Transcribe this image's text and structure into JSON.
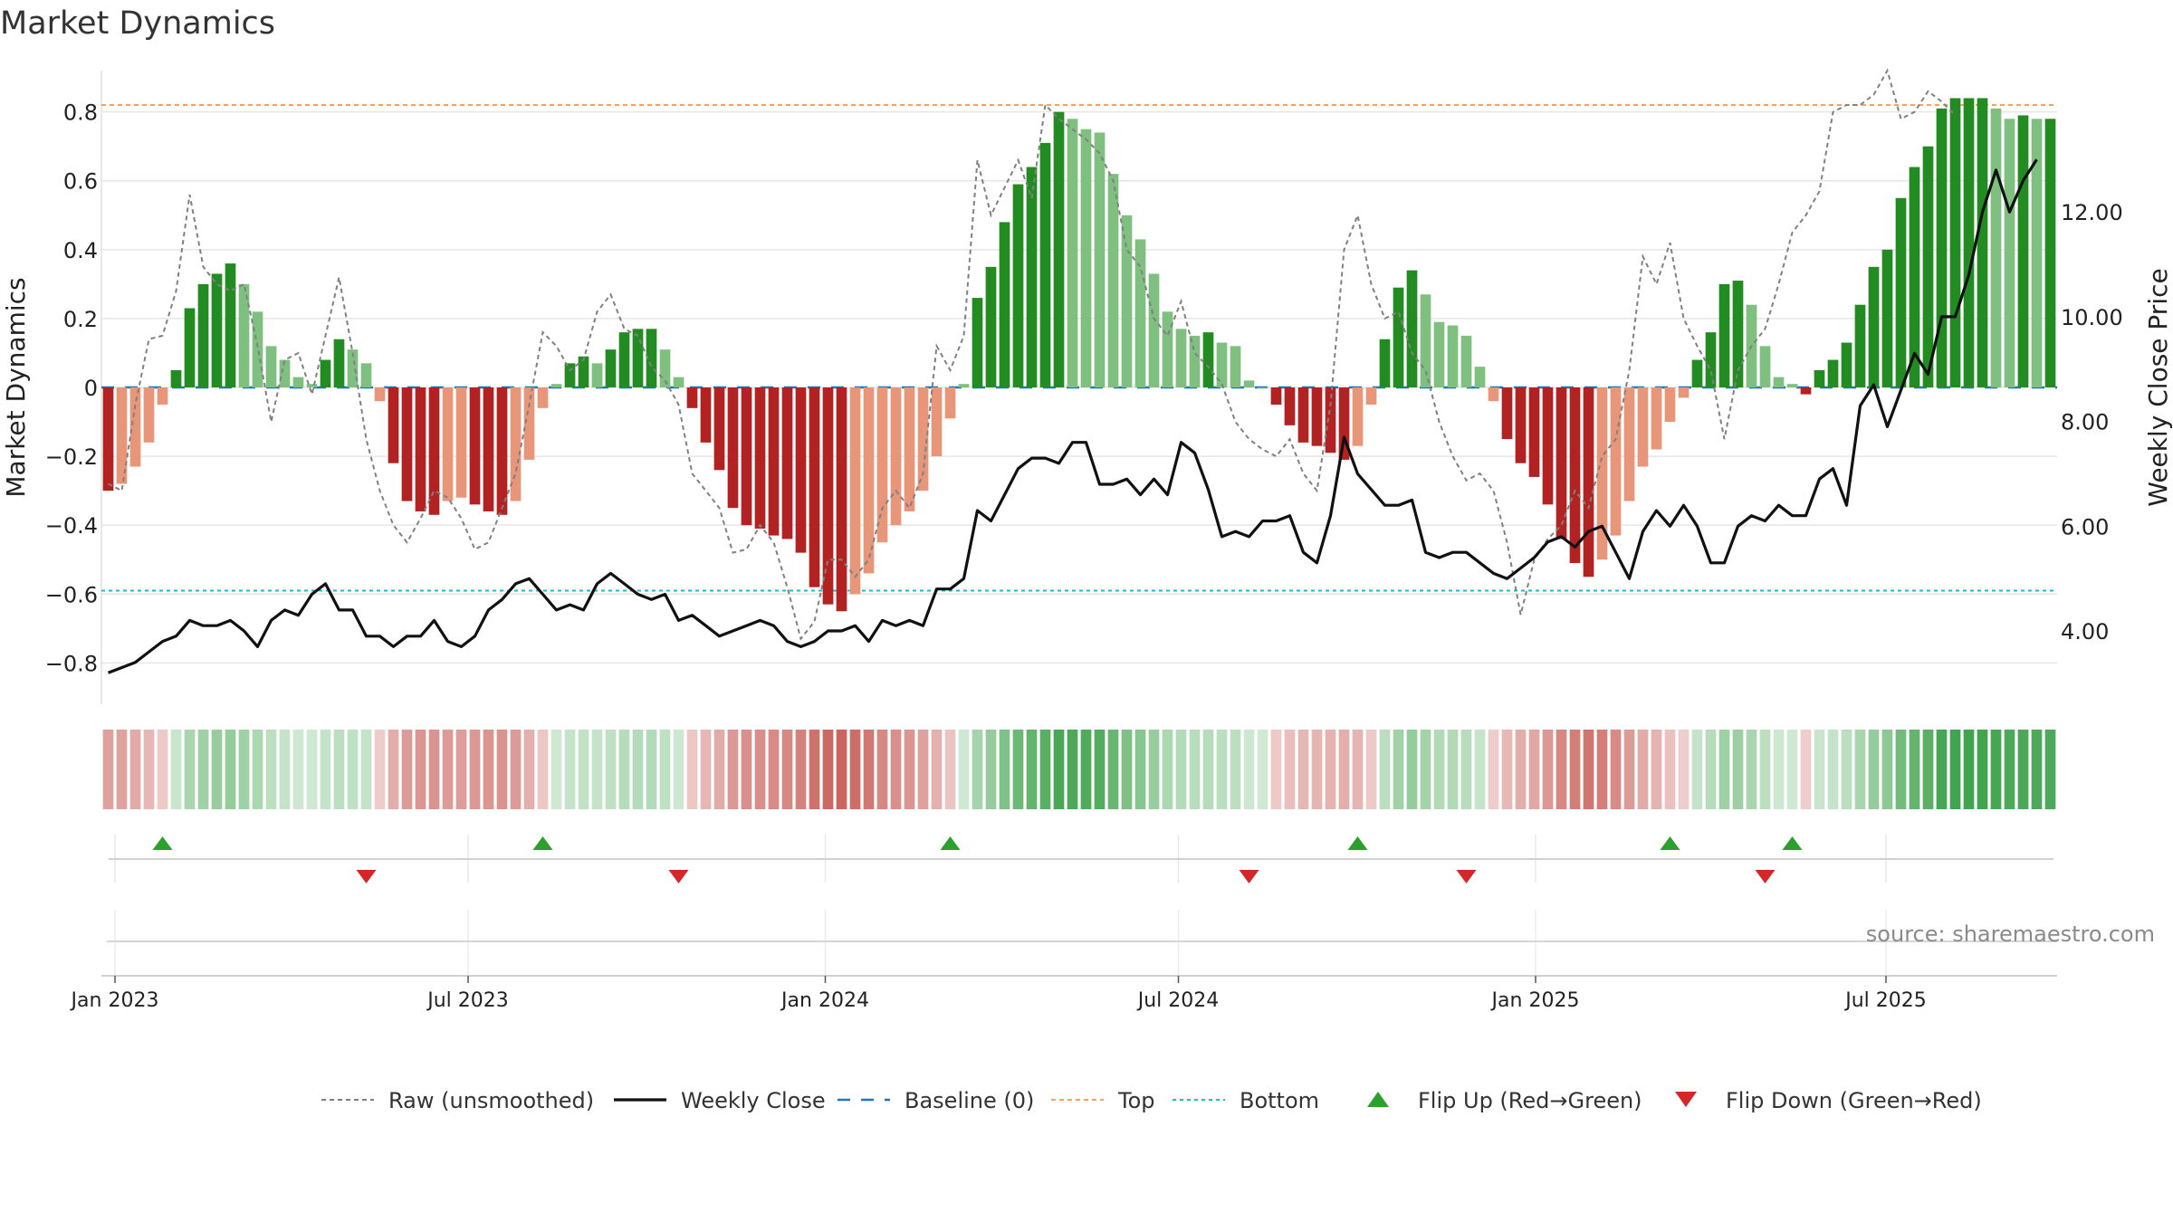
{
  "chart_data": {
    "type": "bar",
    "title": "Market Dynamics",
    "ylabel_left": "Market Dynamics",
    "ylabel_right": "Weekly Close Price",
    "source": "source: sharemaestro.com",
    "ylim_left": [
      -0.92,
      0.92
    ],
    "ylim_right": [
      2.6,
      14.7
    ],
    "left_ticks": [
      0.8,
      0.6,
      0.4,
      0.2,
      0,
      -0.2,
      -0.4,
      -0.6,
      -0.8
    ],
    "left_tick_labels": [
      "0.8",
      "0.6",
      "0.4",
      "0.2",
      "0",
      "−0.2",
      "−0.4",
      "−0.6",
      "−0.8"
    ],
    "right_ticks": [
      12,
      10,
      8,
      6,
      4
    ],
    "right_tick_labels": [
      "12.00",
      "10.00",
      "8.00",
      "6.00",
      "4.00"
    ],
    "x_week_start": -1,
    "x_ticks": [
      {
        "label": "Jan 2023",
        "week": 0
      },
      {
        "label": "Jul 2023",
        "week": 26
      },
      {
        "label": "Jan 2024",
        "week": 52.3
      },
      {
        "label": "Jul 2024",
        "week": 78.3
      },
      {
        "label": "Jan 2025",
        "week": 104.6
      },
      {
        "label": "Jul 2025",
        "week": 130.4
      }
    ],
    "top_level": 0.82,
    "bottom_level": -0.59,
    "baseline": 0,
    "smoothed": [
      -0.3,
      -0.28,
      -0.23,
      -0.16,
      -0.05,
      0.05,
      0.23,
      0.3,
      0.33,
      0.36,
      0.3,
      0.22,
      0.12,
      0.08,
      0.03,
      0.01,
      0.08,
      0.14,
      0.11,
      0.07,
      -0.04,
      -0.22,
      -0.33,
      -0.36,
      -0.37,
      -0.33,
      -0.32,
      -0.34,
      -0.36,
      -0.37,
      -0.33,
      -0.21,
      -0.06,
      0.01,
      0.07,
      0.09,
      0.07,
      0.11,
      0.16,
      0.17,
      0.17,
      0.11,
      0.03,
      -0.06,
      -0.16,
      -0.24,
      -0.35,
      -0.4,
      -0.41,
      -0.43,
      -0.44,
      -0.48,
      -0.58,
      -0.63,
      -0.65,
      -0.6,
      -0.54,
      -0.45,
      -0.4,
      -0.36,
      -0.3,
      -0.2,
      -0.09,
      0.01,
      0.26,
      0.35,
      0.48,
      0.59,
      0.64,
      0.71,
      0.8,
      0.78,
      0.75,
      0.74,
      0.62,
      0.5,
      0.43,
      0.33,
      0.22,
      0.17,
      0.15,
      0.16,
      0.13,
      0.12,
      0.02,
      0,
      -0.05,
      -0.11,
      -0.16,
      -0.17,
      -0.19,
      -0.21,
      -0.17,
      -0.05,
      0.14,
      0.29,
      0.34,
      0.27,
      0.19,
      0.18,
      0.15,
      0.06,
      -0.04,
      -0.15,
      -0.22,
      -0.26,
      -0.34,
      -0.44,
      -0.51,
      -0.55,
      -0.5,
      -0.43,
      -0.33,
      -0.23,
      -0.18,
      -0.1,
      -0.03,
      0.08,
      0.16,
      0.3,
      0.31,
      0.24,
      0.12,
      0.03,
      0.01,
      -0.02,
      0.05,
      0.08,
      0.13,
      0.24,
      0.35,
      0.4,
      0.55,
      0.64,
      0.7,
      0.81,
      0.84,
      0.84,
      0.84,
      0.81,
      0.78,
      0.79,
      0.78,
      0.78
    ],
    "raw": [
      -0.28,
      -0.3,
      -0.05,
      0.14,
      0.15,
      0.28,
      0.56,
      0.35,
      0.3,
      0.28,
      0.3,
      0.12,
      -0.1,
      0.08,
      0.1,
      -0.02,
      0.15,
      0.32,
      0.1,
      -0.15,
      -0.3,
      -0.4,
      -0.45,
      -0.38,
      -0.3,
      -0.32,
      -0.38,
      -0.47,
      -0.45,
      -0.35,
      -0.25,
      -0.05,
      0.16,
      0.12,
      0.05,
      0.08,
      0.22,
      0.27,
      0.17,
      0.15,
      0.06,
      0.02,
      -0.05,
      -0.25,
      -0.3,
      -0.35,
      -0.48,
      -0.47,
      -0.4,
      -0.45,
      -0.58,
      -0.73,
      -0.68,
      -0.5,
      -0.5,
      -0.55,
      -0.5,
      -0.35,
      -0.3,
      -0.35,
      -0.25,
      0.12,
      0.05,
      0.15,
      0.66,
      0.5,
      0.58,
      0.66,
      0.55,
      0.82,
      0.78,
      0.75,
      0.72,
      0.68,
      0.6,
      0.4,
      0.35,
      0.2,
      0.15,
      0.25,
      0.1,
      0.06,
      0.01,
      -0.1,
      -0.15,
      -0.18,
      -0.2,
      -0.15,
      -0.25,
      -0.3,
      -0.05,
      0.4,
      0.5,
      0.3,
      0.2,
      0.22,
      0.1,
      0.05,
      -0.1,
      -0.2,
      -0.27,
      -0.25,
      -0.3,
      -0.45,
      -0.66,
      -0.5,
      -0.44,
      -0.4,
      -0.3,
      -0.35,
      -0.2,
      -0.15,
      0.05,
      0.38,
      0.3,
      0.42,
      0.2,
      0.12,
      0.05,
      -0.15,
      0.05,
      0.12,
      0.17,
      0.3,
      0.45,
      0.5,
      0.57,
      0.8,
      0.82,
      0.82,
      0.85,
      0.92,
      0.78,
      0.8,
      0.86,
      0.83,
      0.79
    ]
  },
  "price": [
    3.2,
    3.3,
    3.4,
    3.6,
    3.8,
    3.9,
    4.2,
    4.1,
    4.1,
    4.2,
    4.0,
    3.7,
    4.2,
    4.4,
    4.3,
    4.7,
    4.9,
    4.4,
    4.4,
    3.9,
    3.9,
    3.7,
    3.9,
    3.9,
    4.2,
    3.8,
    3.7,
    3.9,
    4.4,
    4.6,
    4.9,
    5.0,
    4.7,
    4.4,
    4.5,
    4.4,
    4.9,
    5.1,
    4.9,
    4.7,
    4.6,
    4.7,
    4.2,
    4.3,
    4.1,
    3.9,
    4.0,
    4.1,
    4.2,
    4.1,
    3.8,
    3.7,
    3.8,
    4.0,
    4.0,
    4.1,
    3.8,
    4.2,
    4.1,
    4.2,
    4.1,
    4.8,
    4.8,
    5.0,
    6.3,
    6.1,
    6.6,
    7.1,
    7.3,
    7.3,
    7.2,
    7.6,
    7.6,
    6.8,
    6.8,
    6.9,
    6.6,
    6.9,
    6.6,
    7.6,
    7.4,
    6.7,
    5.8,
    5.9,
    5.8,
    6.1,
    6.1,
    6.2,
    5.5,
    5.3,
    6.2,
    7.7,
    7.0,
    6.7,
    6.4,
    6.4,
    6.5,
    5.5,
    5.4,
    5.5,
    5.5,
    5.3,
    5.1,
    5.0,
    5.2,
    5.4,
    5.7,
    5.8,
    5.6,
    5.9,
    6.0,
    5.5,
    5.0,
    5.9,
    6.3,
    6.0,
    6.4,
    6.0,
    5.3,
    5.3,
    6.0,
    6.2,
    6.1,
    6.4,
    6.2,
    6.2,
    6.9,
    7.1,
    6.4,
    8.3,
    8.7,
    7.9,
    8.6,
    9.3,
    8.9,
    10.0,
    10.0,
    10.8,
    12.0,
    12.8,
    12.0,
    12.6,
    13.0
  ],
  "bands": [
    {
      "label": "Raw (unsmoothed)",
      "key": "raw"
    },
    {
      "label": "Weekly Close",
      "key": "close"
    },
    {
      "label": "Baseline (0)",
      "key": "baseline"
    },
    {
      "label": "Top",
      "key": "top"
    },
    {
      "label": "Bottom",
      "key": "bottom"
    },
    {
      "label": "Flip Up (Red→Green)",
      "key": "flipup"
    },
    {
      "label": "Flip Down (Green→Red)",
      "key": "flipdown"
    }
  ],
  "flips_up_weeks": [
    3,
    31,
    61,
    91,
    114,
    123
  ],
  "flips_down_weeks": [
    18,
    41,
    83,
    99,
    121
  ],
  "colors": {
    "pos_strong": "#228b22",
    "pos_weak": "#7fbf7f",
    "neg_strong": "#b22222",
    "neg_weak": "#e8967a",
    "raw": "#808080",
    "close": "#111111",
    "baseline": "#1f77b4",
    "top": "#f4a261",
    "bottom": "#17becf",
    "flip_up": "#2ca02c",
    "flip_down": "#d62728",
    "grid": "#e6e6e6",
    "band_pos": "#2e9a3c",
    "band_neg": "#b8322a"
  }
}
